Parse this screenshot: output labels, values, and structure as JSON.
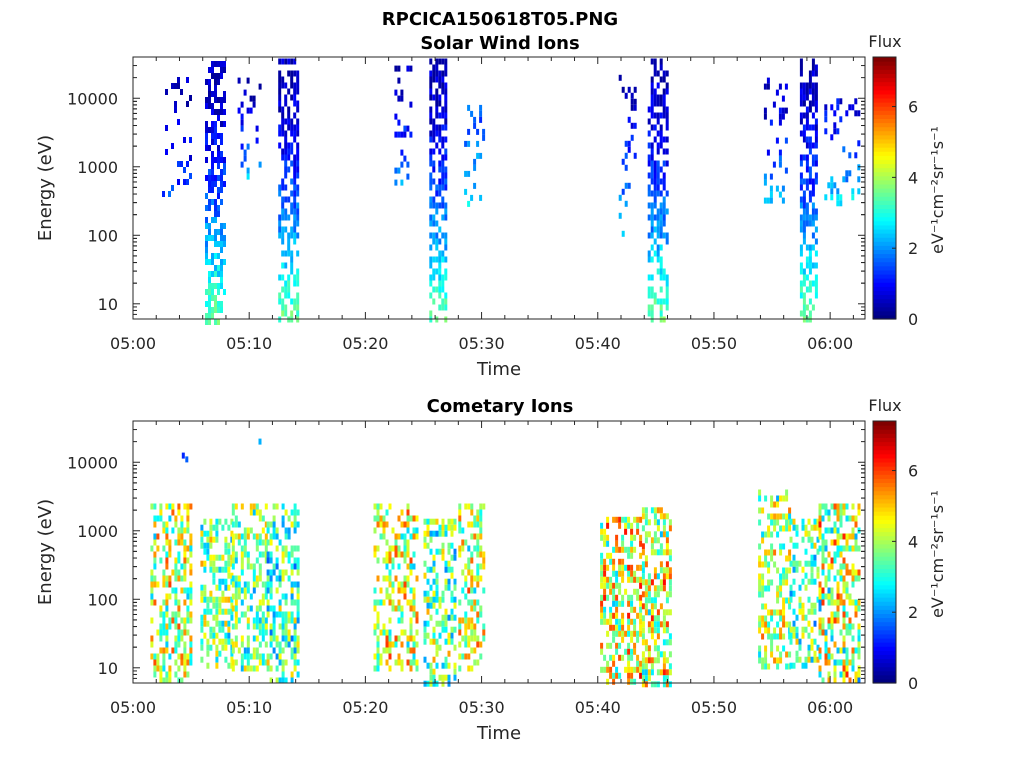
{
  "figure_title": "RPCICA150618T05.PNG",
  "chart_data": [
    {
      "type": "heatmap",
      "title": "Solar Wind Ions",
      "xlabel": "Time",
      "ylabel": "Energy (eV)",
      "x_range": [
        "05:00",
        "06:03"
      ],
      "x_ticks": [
        "05:00",
        "05:10",
        "05:20",
        "05:30",
        "05:40",
        "05:50",
        "06:00"
      ],
      "y_scale": "log",
      "y_range": [
        6,
        40000
      ],
      "y_ticks": [
        "10",
        "100",
        "1000",
        "10000"
      ],
      "colorbar": {
        "title": "Flux",
        "label": "eV⁻¹cm⁻²sr⁻¹s⁻¹",
        "range": [
          0,
          7.4
        ],
        "ticks": [
          "0",
          "2",
          "4",
          "6"
        ],
        "colormap": "jet"
      },
      "bursts": [
        {
          "t0_min": 2.5,
          "t1_min": 5.0,
          "emin": 400,
          "emax": 25000,
          "density": 0.12,
          "level_lo": 0.3,
          "level_hi": 1.4
        },
        {
          "t0_min": 6.2,
          "t1_min": 7.9,
          "emin": 6,
          "emax": 35000,
          "density": 0.55,
          "level_lo": 0.4,
          "level_hi": 3.6
        },
        {
          "t0_min": 9.0,
          "t1_min": 11.0,
          "emin": 700,
          "emax": 20000,
          "density": 0.18,
          "level_lo": 0.3,
          "level_hi": 2.4
        },
        {
          "t0_min": 12.5,
          "t1_min": 14.3,
          "emin": 6,
          "emax": 38000,
          "density": 0.55,
          "level_lo": 0.4,
          "level_hi": 3.6
        },
        {
          "t0_min": 22.5,
          "t1_min": 24.0,
          "emin": 600,
          "emax": 30000,
          "density": 0.22,
          "level_lo": 0.4,
          "level_hi": 2.2
        },
        {
          "t0_min": 25.5,
          "t1_min": 27.0,
          "emin": 6,
          "emax": 38000,
          "density": 0.6,
          "level_lo": 0.4,
          "level_hi": 3.6
        },
        {
          "t0_min": 28.5,
          "t1_min": 30.2,
          "emin": 300,
          "emax": 8000,
          "density": 0.2,
          "level_lo": 1.5,
          "level_hi": 2.8
        },
        {
          "t0_min": 41.8,
          "t1_min": 43.2,
          "emin": 100,
          "emax": 22000,
          "density": 0.22,
          "level_lo": 0.4,
          "level_hi": 2.8
        },
        {
          "t0_min": 44.3,
          "t1_min": 46.1,
          "emin": 6,
          "emax": 38000,
          "density": 0.6,
          "level_lo": 0.4,
          "level_hi": 3.6
        },
        {
          "t0_min": 54.3,
          "t1_min": 56.3,
          "emin": 350,
          "emax": 20000,
          "density": 0.2,
          "level_lo": 0.4,
          "level_hi": 2.4
        },
        {
          "t0_min": 57.4,
          "t1_min": 58.8,
          "emin": 6,
          "emax": 38000,
          "density": 0.6,
          "level_lo": 0.4,
          "level_hi": 3.6
        },
        {
          "t0_min": 59.5,
          "t1_min": 62.5,
          "emin": 300,
          "emax": 10000,
          "density": 0.2,
          "level_lo": 0.8,
          "level_hi": 2.8
        }
      ]
    },
    {
      "type": "heatmap",
      "title": "Cometary Ions",
      "xlabel": "Time",
      "ylabel": "Energy (eV)",
      "x_range": [
        "05:00",
        "06:03"
      ],
      "x_ticks": [
        "05:00",
        "05:10",
        "05:20",
        "05:30",
        "05:40",
        "05:50",
        "06:00"
      ],
      "y_scale": "log",
      "y_range": [
        6,
        40000
      ],
      "y_ticks": [
        "10",
        "100",
        "1000",
        "10000"
      ],
      "colorbar": {
        "title": "Flux",
        "label": "eV⁻¹cm⁻²sr⁻¹s⁻¹",
        "range": [
          0,
          7.4
        ],
        "ticks": [
          "0",
          "2",
          "4",
          "6"
        ],
        "colormap": "jet"
      },
      "bursts": [
        {
          "t0_min": 1.5,
          "t1_min": 4.9,
          "emin": 6,
          "emax": 2500,
          "density": 0.5,
          "level_lo": 1.2,
          "level_hi": 5.8
        },
        {
          "t0_min": 5.8,
          "t1_min": 8.5,
          "emin": 10,
          "emax": 1500,
          "density": 0.5,
          "level_lo": 1.2,
          "level_hi": 5.0
        },
        {
          "t0_min": 8.5,
          "t1_min": 11.5,
          "emin": 10,
          "emax": 2500,
          "density": 0.5,
          "level_lo": 1.2,
          "level_hi": 5.0
        },
        {
          "t0_min": 11.5,
          "t1_min": 14.2,
          "emin": 6,
          "emax": 2500,
          "density": 0.5,
          "level_lo": 0.6,
          "level_hi": 4.8
        },
        {
          "t0_min": 20.7,
          "t1_min": 24.5,
          "emin": 10,
          "emax": 2500,
          "density": 0.45,
          "level_lo": 1.2,
          "level_hi": 5.8
        },
        {
          "t0_min": 25.0,
          "t1_min": 27.8,
          "emin": 6,
          "emax": 1500,
          "density": 0.5,
          "level_lo": 0.6,
          "level_hi": 5.0
        },
        {
          "t0_min": 28.0,
          "t1_min": 30.2,
          "emin": 10,
          "emax": 2500,
          "density": 0.45,
          "level_lo": 1.2,
          "level_hi": 5.8
        },
        {
          "t0_min": 40.2,
          "t1_min": 43.8,
          "emin": 6,
          "emax": 1600,
          "density": 0.55,
          "level_lo": 1.2,
          "level_hi": 6.2
        },
        {
          "t0_min": 43.8,
          "t1_min": 46.2,
          "emin": 6,
          "emax": 2200,
          "density": 0.55,
          "level_lo": 1.0,
          "level_hi": 6.2
        },
        {
          "t0_min": 53.8,
          "t1_min": 56.5,
          "emin": 10,
          "emax": 4000,
          "density": 0.5,
          "level_lo": 1.2,
          "level_hi": 5.4
        },
        {
          "t0_min": 56.5,
          "t1_min": 59.0,
          "emin": 10,
          "emax": 1500,
          "density": 0.45,
          "level_lo": 0.6,
          "level_hi": 5.0
        },
        {
          "t0_min": 59.0,
          "t1_min": 62.5,
          "emin": 6,
          "emax": 2500,
          "density": 0.5,
          "level_lo": 0.6,
          "level_hi": 6.0
        }
      ],
      "sparse_points": [
        {
          "t_min": 4.2,
          "e": 12500,
          "level": 1.2
        },
        {
          "t_min": 4.5,
          "e": 11000,
          "level": 1.6
        },
        {
          "t_min": 10.8,
          "e": 20000,
          "level": 2.2
        }
      ]
    }
  ]
}
